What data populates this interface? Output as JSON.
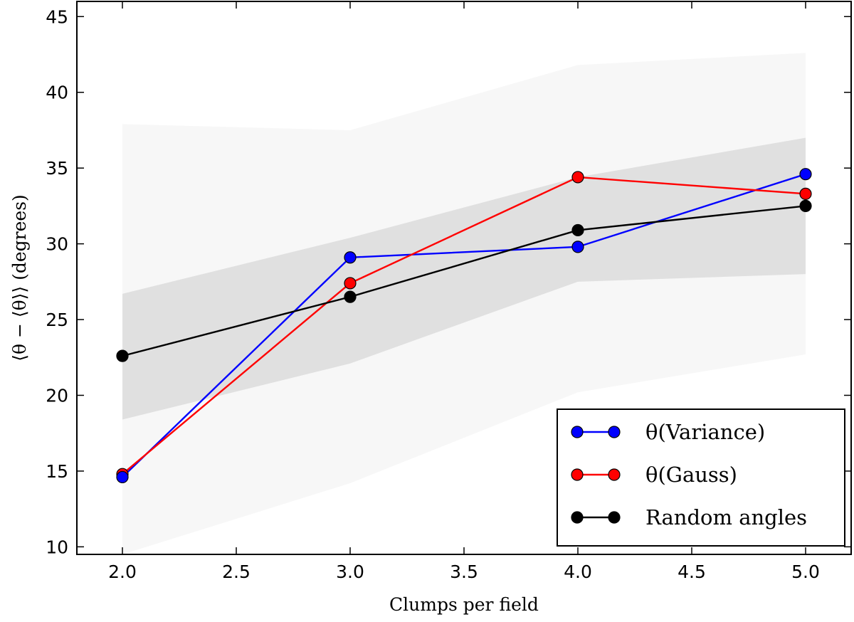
{
  "chart_data": {
    "type": "line",
    "xlabel": "Clumps per field",
    "ylabel": "⟨θ − ⟨θ⟩⟩ (degrees)",
    "xlim": [
      1.8,
      5.2
    ],
    "ylim": [
      9.5,
      46
    ],
    "x_ticks": [
      2.0,
      2.5,
      3.0,
      3.5,
      4.0,
      4.5,
      5.0
    ],
    "x_tick_labels": [
      "2.0",
      "2.5",
      "3.0",
      "3.5",
      "4.0",
      "4.5",
      "5.0"
    ],
    "y_ticks": [
      10,
      15,
      20,
      25,
      30,
      35,
      40,
      45
    ],
    "y_tick_labels": [
      "10",
      "15",
      "20",
      "25",
      "30",
      "35",
      "40",
      "45"
    ],
    "grid": false,
    "legend_position": "lower-right",
    "x": [
      2.0,
      3.0,
      4.0,
      5.0
    ],
    "series": [
      {
        "name": "θ(Variance)",
        "color": "#0000ff",
        "values": [
          14.6,
          29.1,
          29.8,
          34.6
        ]
      },
      {
        "name": "θ(Gauss)",
        "color": "#ff0000",
        "values": [
          14.8,
          27.4,
          34.4,
          33.3
        ]
      },
      {
        "name": "Random angles",
        "color": "#000000",
        "values": [
          22.6,
          26.5,
          30.9,
          32.5
        ]
      }
    ],
    "bands": [
      {
        "color": "#f7f7f7",
        "lower": [
          9.5,
          14.2,
          20.2,
          22.7
        ],
        "upper": [
          37.9,
          37.5,
          41.8,
          42.6
        ]
      },
      {
        "color": "#e0e0e0",
        "lower": [
          18.4,
          22.1,
          27.5,
          28.0
        ],
        "upper": [
          26.7,
          30.4,
          34.4,
          37.0
        ]
      }
    ]
  }
}
